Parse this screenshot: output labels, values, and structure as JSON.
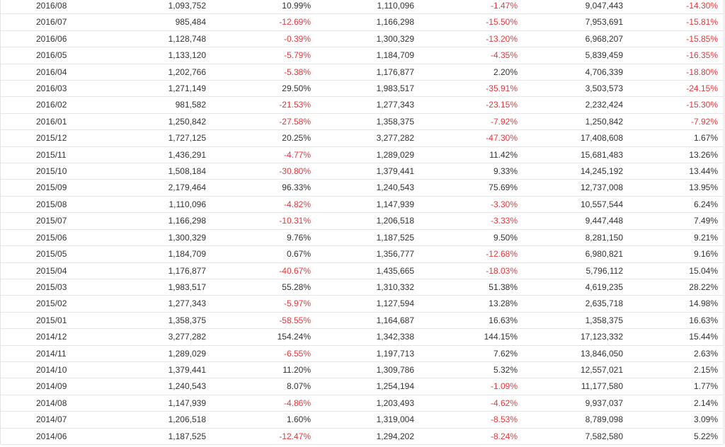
{
  "colors": {
    "negative": "#e8383d",
    "positive": "#333333",
    "row_border": "#e6e6e6"
  },
  "rows": [
    {
      "month": "2016/08",
      "a": "1,093,752",
      "b": "10.99%",
      "c": "1,110,096",
      "d": "-1.47%",
      "e": "9,047,443",
      "f": "-14.30%"
    },
    {
      "month": "2016/07",
      "a": "985,484",
      "b": "-12.69%",
      "c": "1,166,298",
      "d": "-15.50%",
      "e": "7,953,691",
      "f": "-15.81%"
    },
    {
      "month": "2016/06",
      "a": "1,128,748",
      "b": "-0.39%",
      "c": "1,300,329",
      "d": "-13.20%",
      "e": "6,968,207",
      "f": "-15.85%"
    },
    {
      "month": "2016/05",
      "a": "1,133,120",
      "b": "-5.79%",
      "c": "1,184,709",
      "d": "-4.35%",
      "e": "5,839,459",
      "f": "-16.35%"
    },
    {
      "month": "2016/04",
      "a": "1,202,766",
      "b": "-5.38%",
      "c": "1,176,877",
      "d": "2.20%",
      "e": "4,706,339",
      "f": "-18.80%"
    },
    {
      "month": "2016/03",
      "a": "1,271,149",
      "b": "29.50%",
      "c": "1,983,517",
      "d": "-35.91%",
      "e": "3,503,573",
      "f": "-24.15%"
    },
    {
      "month": "2016/02",
      "a": "981,582",
      "b": "-21.53%",
      "c": "1,277,343",
      "d": "-23.15%",
      "e": "2,232,424",
      "f": "-15.30%"
    },
    {
      "month": "2016/01",
      "a": "1,250,842",
      "b": "-27.58%",
      "c": "1,358,375",
      "d": "-7.92%",
      "e": "1,250,842",
      "f": "-7.92%"
    },
    {
      "month": "2015/12",
      "a": "1,727,125",
      "b": "20.25%",
      "c": "3,277,282",
      "d": "-47.30%",
      "e": "17,408,608",
      "f": "1.67%"
    },
    {
      "month": "2015/11",
      "a": "1,436,291",
      "b": "-4.77%",
      "c": "1,289,029",
      "d": "11.42%",
      "e": "15,681,483",
      "f": "13.26%"
    },
    {
      "month": "2015/10",
      "a": "1,508,184",
      "b": "-30.80%",
      "c": "1,379,441",
      "d": "9.33%",
      "e": "14,245,192",
      "f": "13.44%"
    },
    {
      "month": "2015/09",
      "a": "2,179,464",
      "b": "96.33%",
      "c": "1,240,543",
      "d": "75.69%",
      "e": "12,737,008",
      "f": "13.95%"
    },
    {
      "month": "2015/08",
      "a": "1,110,096",
      "b": "-4.82%",
      "c": "1,147,939",
      "d": "-3.30%",
      "e": "10,557,544",
      "f": "6.24%"
    },
    {
      "month": "2015/07",
      "a": "1,166,298",
      "b": "-10.31%",
      "c": "1,206,518",
      "d": "-3.33%",
      "e": "9,447,448",
      "f": "7.49%"
    },
    {
      "month": "2015/06",
      "a": "1,300,329",
      "b": "9.76%",
      "c": "1,187,525",
      "d": "9.50%",
      "e": "8,281,150",
      "f": "9.21%"
    },
    {
      "month": "2015/05",
      "a": "1,184,709",
      "b": "0.67%",
      "c": "1,356,777",
      "d": "-12.68%",
      "e": "6,980,821",
      "f": "9.16%"
    },
    {
      "month": "2015/04",
      "a": "1,176,877",
      "b": "-40.67%",
      "c": "1,435,665",
      "d": "-18.03%",
      "e": "5,796,112",
      "f": "15.04%"
    },
    {
      "month": "2015/03",
      "a": "1,983,517",
      "b": "55.28%",
      "c": "1,310,332",
      "d": "51.38%",
      "e": "4,619,235",
      "f": "28.22%"
    },
    {
      "month": "2015/02",
      "a": "1,277,343",
      "b": "-5.97%",
      "c": "1,127,594",
      "d": "13.28%",
      "e": "2,635,718",
      "f": "14.98%"
    },
    {
      "month": "2015/01",
      "a": "1,358,375",
      "b": "-58.55%",
      "c": "1,164,687",
      "d": "16.63%",
      "e": "1,358,375",
      "f": "16.63%"
    },
    {
      "month": "2014/12",
      "a": "3,277,282",
      "b": "154.24%",
      "c": "1,342,338",
      "d": "144.15%",
      "e": "17,123,332",
      "f": "15.44%"
    },
    {
      "month": "2014/11",
      "a": "1,289,029",
      "b": "-6.55%",
      "c": "1,197,713",
      "d": "7.62%",
      "e": "13,846,050",
      "f": "2.63%"
    },
    {
      "month": "2014/10",
      "a": "1,379,441",
      "b": "11.20%",
      "c": "1,309,786",
      "d": "5.32%",
      "e": "12,557,021",
      "f": "2.15%"
    },
    {
      "month": "2014/09",
      "a": "1,240,543",
      "b": "8.07%",
      "c": "1,254,194",
      "d": "-1.09%",
      "e": "11,177,580",
      "f": "1.77%"
    },
    {
      "month": "2014/08",
      "a": "1,147,939",
      "b": "-4.86%",
      "c": "1,203,493",
      "d": "-4.62%",
      "e": "9,937,037",
      "f": "2.14%"
    },
    {
      "month": "2014/07",
      "a": "1,206,518",
      "b": "1.60%",
      "c": "1,319,004",
      "d": "-8.53%",
      "e": "8,789,098",
      "f": "3.09%"
    },
    {
      "month": "2014/06",
      "a": "1,187,525",
      "b": "-12.47%",
      "c": "1,294,202",
      "d": "-8.24%",
      "e": "7,582,580",
      "f": "5.22%"
    }
  ]
}
